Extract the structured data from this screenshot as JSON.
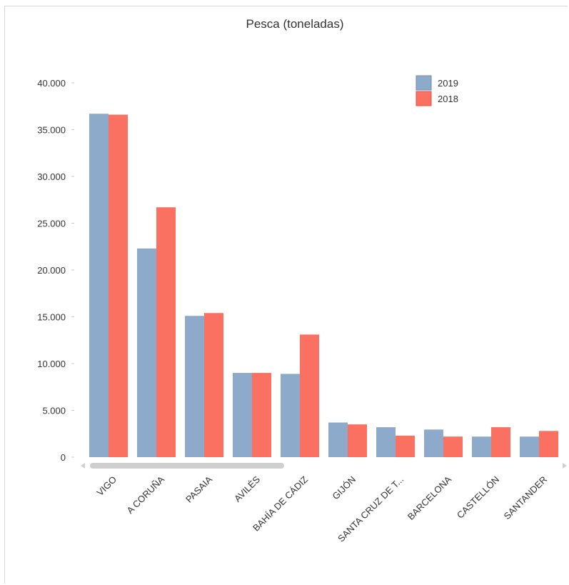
{
  "chart_data": {
    "type": "bar",
    "title": "Pesca (toneladas)",
    "xlabel": "",
    "ylabel": "",
    "ylim": [
      0,
      40000
    ],
    "yticks": [
      {
        "value": 0,
        "label": "0"
      },
      {
        "value": 5000,
        "label": "5.000"
      },
      {
        "value": 10000,
        "label": "10.000"
      },
      {
        "value": 15000,
        "label": "15.000"
      },
      {
        "value": 20000,
        "label": "20.000"
      },
      {
        "value": 25000,
        "label": "25.000"
      },
      {
        "value": 30000,
        "label": "30.000"
      },
      {
        "value": 35000,
        "label": "35.000"
      },
      {
        "value": 40000,
        "label": "40.000"
      }
    ],
    "categories": [
      "VIGO",
      "A CORUÑA",
      "PASAIA",
      "AVILÉS",
      "BAHÍA DE CÁDIZ",
      "GIJÓN",
      "SANTA CRUZ DE T...",
      "BARCELONA",
      "CASTELLÓN",
      "SANTANDER"
    ],
    "series": [
      {
        "name": "2019",
        "color": "#8eaacb",
        "values": [
          36700,
          22300,
          15100,
          9000,
          8900,
          3700,
          3200,
          2950,
          2200,
          2200
        ]
      },
      {
        "name": "2018",
        "color": "#fa7061",
        "values": [
          36600,
          26700,
          15400,
          9000,
          13100,
          3500,
          2300,
          2200,
          3200,
          2800
        ]
      }
    ],
    "legend": "top-right",
    "grid": false,
    "scroll_icons": {
      "left": "scroll-left-arrow-icon",
      "right": "scroll-right-arrow-icon"
    }
  }
}
